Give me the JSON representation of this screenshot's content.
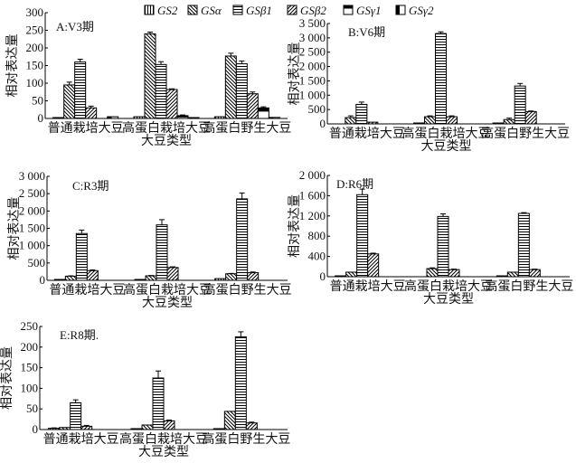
{
  "legend": [
    "GS2",
    "GSα",
    "GSβ1",
    "GSβ2",
    "GSγ1",
    "GSγ2"
  ],
  "chart_data": [
    {
      "type": "bar",
      "title": "A:V3期",
      "ylabel": "相对表达量",
      "xlabel": "大豆类型",
      "ylim": [
        0,
        300
      ],
      "yticks": [
        0,
        50,
        100,
        150,
        200,
        250,
        300
      ],
      "ytick_labels": [
        "0",
        "50",
        "100",
        "150",
        "200",
        "250",
        "300"
      ],
      "categories": [
        "普通栽培大豆",
        "高蛋白栽培大豆",
        "高蛋白野生大豆"
      ],
      "series": [
        {
          "name": "GS2",
          "values": [
            2,
            5,
            5
          ],
          "errors": [
            0,
            0,
            0
          ]
        },
        {
          "name": "GSα",
          "values": [
            95,
            240,
            177
          ],
          "errors": [
            8,
            5,
            8
          ]
        },
        {
          "name": "GSβ1",
          "values": [
            160,
            153,
            155
          ],
          "errors": [
            8,
            8,
            8
          ]
        },
        {
          "name": "GSβ2",
          "values": [
            30,
            82,
            70
          ],
          "errors": [
            5,
            2,
            5
          ]
        },
        {
          "name": "GSγ1",
          "values": [
            0,
            8,
            30
          ],
          "errors": [
            0,
            2,
            3
          ]
        },
        {
          "name": "GSγ2",
          "values": [
            5,
            2,
            3
          ],
          "errors": [
            0,
            0,
            0
          ]
        }
      ]
    },
    {
      "type": "bar",
      "title": "B:V6期",
      "ylabel": "相对表达量",
      "xlabel": "大豆类型",
      "ylim": [
        0,
        3500
      ],
      "yticks": [
        0,
        500,
        1000,
        1500,
        2000,
        2500,
        3000,
        3500
      ],
      "ytick_labels": [
        "0",
        "500",
        "1 000",
        "1 500",
        "2 000",
        "2 500",
        "3 000",
        "3 500"
      ],
      "categories": [
        "普通栽培大豆",
        "高蛋白栽培大豆",
        "高蛋白野生大豆"
      ],
      "series": [
        {
          "name": "GS2",
          "values": [
            0,
            20,
            20
          ],
          "errors": [
            0,
            0,
            0
          ]
        },
        {
          "name": "GSα",
          "values": [
            220,
            250,
            150
          ],
          "errors": [
            60,
            30,
            50
          ]
        },
        {
          "name": "GSβ1",
          "values": [
            680,
            3150,
            1320
          ],
          "errors": [
            80,
            60,
            90
          ]
        },
        {
          "name": "GSβ2",
          "values": [
            60,
            250,
            430
          ],
          "errors": [
            0,
            30,
            20
          ]
        },
        {
          "name": "GSγ1",
          "values": [
            0,
            0,
            0
          ],
          "errors": [
            0,
            0,
            0
          ]
        },
        {
          "name": "GSγ2",
          "values": [
            0,
            0,
            0
          ],
          "errors": [
            0,
            0,
            0
          ]
        }
      ]
    },
    {
      "type": "bar",
      "title": "C:R3期",
      "ylabel": "相对表达量",
      "xlabel": "大豆类型",
      "ylim": [
        0,
        3000
      ],
      "yticks": [
        0,
        500,
        1000,
        1500,
        2000,
        2500,
        3000
      ],
      "ytick_labels": [
        "0",
        "500",
        "1 000",
        "1 500",
        "2 000",
        "2 500",
        "3 000"
      ],
      "categories": [
        "普通栽培大豆",
        "高蛋白栽培大豆",
        "高蛋白野生大豆"
      ],
      "series": [
        {
          "name": "GS2",
          "values": [
            20,
            20,
            50
          ],
          "errors": [
            0,
            0,
            0
          ]
        },
        {
          "name": "GSα",
          "values": [
            120,
            130,
            190
          ],
          "errors": [
            10,
            10,
            10
          ]
        },
        {
          "name": "GSβ1",
          "values": [
            1350,
            1600,
            2350
          ],
          "errors": [
            100,
            150,
            170
          ]
        },
        {
          "name": "GSβ2",
          "values": [
            280,
            370,
            220
          ],
          "errors": [
            20,
            20,
            20
          ]
        },
        {
          "name": "GSγ1",
          "values": [
            0,
            0,
            0
          ],
          "errors": [
            0,
            0,
            0
          ]
        },
        {
          "name": "GSγ2",
          "values": [
            0,
            0,
            0
          ],
          "errors": [
            0,
            0,
            0
          ]
        }
      ]
    },
    {
      "type": "bar",
      "title": "D:R6期",
      "ylabel": "相对表达量",
      "xlabel": "大豆类型",
      "ylim": [
        0,
        2000
      ],
      "yticks": [
        0,
        400,
        800,
        1200,
        1600,
        2000
      ],
      "ytick_labels": [
        "0",
        "400",
        "800",
        "1 200",
        "1 600",
        "2 000"
      ],
      "categories": [
        "普通栽培大豆",
        "高蛋白栽培大豆",
        "高蛋白野生大豆"
      ],
      "series": [
        {
          "name": "GS2",
          "values": [
            10,
            0,
            10
          ],
          "errors": [
            0,
            0,
            0
          ]
        },
        {
          "name": "GSα",
          "values": [
            90,
            160,
            90
          ],
          "errors": [
            0,
            15,
            0
          ]
        },
        {
          "name": "GSβ1",
          "values": [
            1620,
            1190,
            1250
          ],
          "errors": [
            110,
            50,
            15
          ]
        },
        {
          "name": "GSβ2",
          "values": [
            450,
            140,
            140
          ],
          "errors": [
            15,
            10,
            10
          ]
        },
        {
          "name": "GSγ1",
          "values": [
            0,
            0,
            0
          ],
          "errors": [
            0,
            0,
            0
          ]
        },
        {
          "name": "GSγ2",
          "values": [
            0,
            0,
            0
          ],
          "errors": [
            0,
            0,
            0
          ]
        }
      ]
    },
    {
      "type": "bar",
      "title": "E:R8期.",
      "ylabel": "相对表达量",
      "xlabel": "大豆类型",
      "ylim": [
        0,
        250
      ],
      "yticks": [
        0,
        50,
        100,
        150,
        200,
        250
      ],
      "ytick_labels": [
        "0",
        "50",
        "100",
        "150",
        "200",
        "250"
      ],
      "categories": [
        "普通栽培大豆",
        "高蛋白栽培大豆",
        "高蛋白野生大豆"
      ],
      "series": [
        {
          "name": "GS2",
          "values": [
            3,
            2,
            2
          ],
          "errors": [
            1,
            0,
            0
          ]
        },
        {
          "name": "GSα",
          "values": [
            5,
            11,
            44
          ],
          "errors": [
            0,
            0,
            0
          ]
        },
        {
          "name": "GSβ1",
          "values": [
            65,
            125,
            225
          ],
          "errors": [
            7,
            17,
            12
          ]
        },
        {
          "name": "GSβ2",
          "values": [
            8,
            21,
            16
          ],
          "errors": [
            2,
            2,
            2
          ]
        },
        {
          "name": "GSγ1",
          "values": [
            0,
            0,
            0
          ],
          "errors": [
            0,
            0,
            0
          ]
        },
        {
          "name": "GSγ2",
          "values": [
            0,
            0,
            0
          ],
          "errors": [
            0,
            0,
            0
          ]
        }
      ]
    }
  ]
}
